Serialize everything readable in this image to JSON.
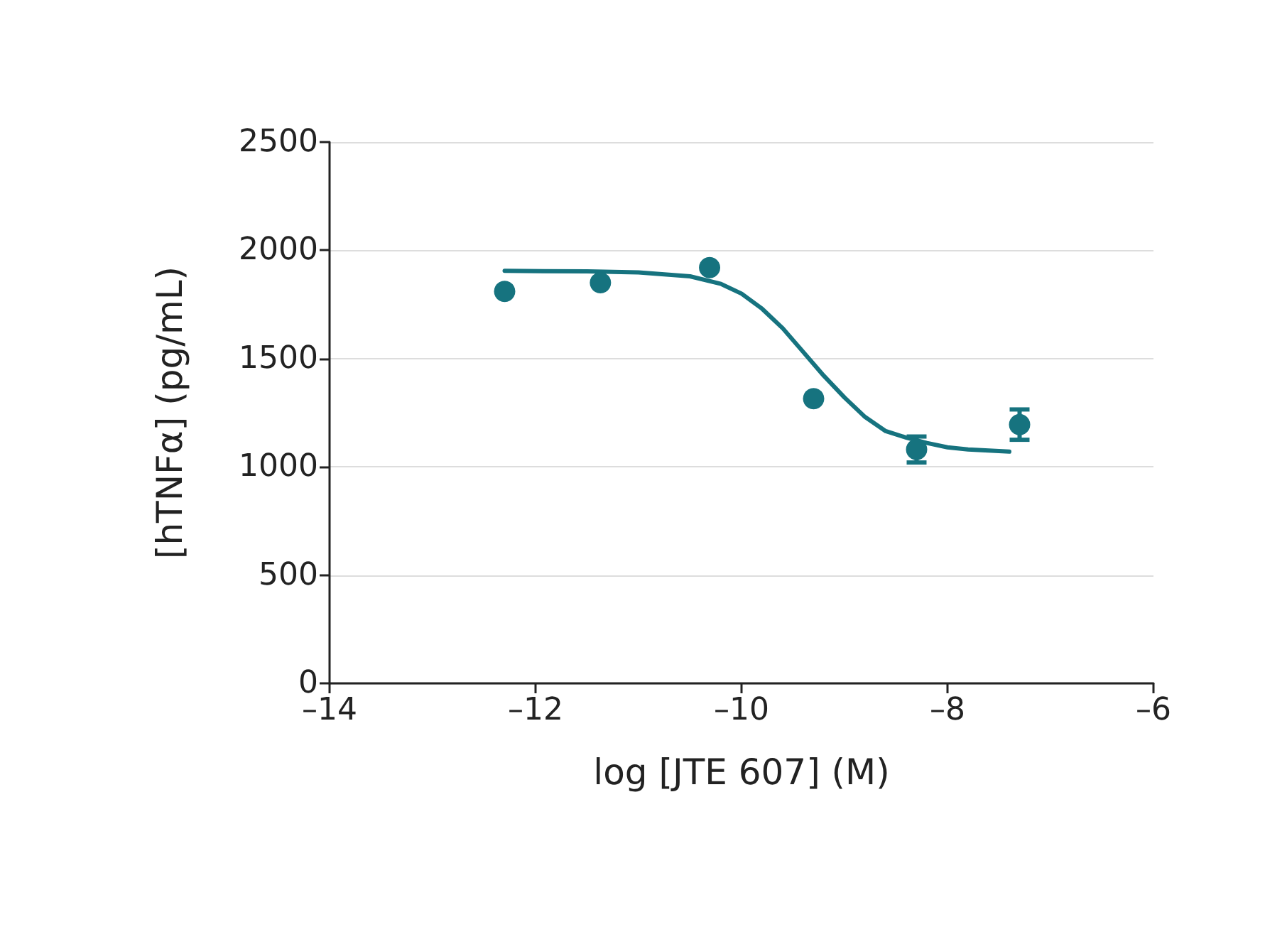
{
  "chart_data": {
    "type": "scatter",
    "xlabel": "log [JTE 607] (M)",
    "ylabel": "[hTNFα] (pg/mL)",
    "xlim": [
      -14,
      -6
    ],
    "xticks": [
      {
        "value": -14,
        "label": "–14"
      },
      {
        "value": -12,
        "label": "–12"
      },
      {
        "value": -10,
        "label": "–10"
      },
      {
        "value": -8,
        "label": "–8"
      },
      {
        "value": -6,
        "label": "–6"
      }
    ],
    "ylim": [
      0,
      2500
    ],
    "yticks": [
      0,
      500,
      1000,
      1500,
      2000,
      2500
    ],
    "grid": "y",
    "marker": "circle",
    "series": [
      {
        "color": "#16737f",
        "x": [
          -12.3,
          -11.37,
          -10.31,
          -9.3,
          -8.3,
          -7.3
        ],
        "values": [
          1810,
          1850,
          1920,
          1315,
          1080,
          1195
        ],
        "errors": [
          null,
          null,
          null,
          null,
          60,
          70
        ]
      },
      {
        "type": "line",
        "color": "#16737f",
        "line_style": "solid",
        "marker": "none",
        "x": [
          -12.3,
          -11.5,
          -11,
          -10.5,
          -10.2,
          -10,
          -9.8,
          -9.6,
          -9.4,
          -9.2,
          -9,
          -8.8,
          -8.6,
          -8.4,
          -8.2,
          -8,
          -7.8,
          -7.4
        ],
        "values": [
          1905,
          1903,
          1898,
          1880,
          1845,
          1800,
          1730,
          1640,
          1530,
          1420,
          1320,
          1230,
          1165,
          1135,
          1110,
          1090,
          1080,
          1070
        ]
      }
    ]
  }
}
